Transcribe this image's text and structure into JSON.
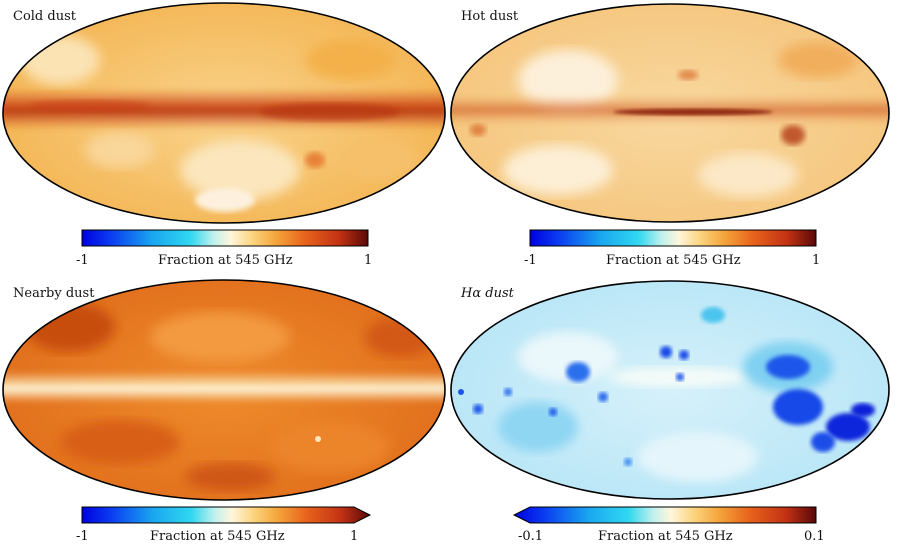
{
  "panels": [
    {
      "title": "Cold dust",
      "colorbar": {
        "label": "Fraction at 545 GHz",
        "min_label": "-1",
        "max_label": "1",
        "extend": "none"
      }
    },
    {
      "title": "Hot dust",
      "colorbar": {
        "label": "Fraction at 545 GHz",
        "min_label": "-1",
        "max_label": "1",
        "extend": "none"
      }
    },
    {
      "title": "Nearby dust",
      "colorbar": {
        "label": "Fraction at 545 GHz",
        "min_label": "-1",
        "max_label": "1",
        "extend": "max"
      }
    },
    {
      "title": "Hα dust",
      "colorbar": {
        "label": "Fraction at 545 GHz",
        "min_label": "-0.1",
        "max_label": "0.1",
        "extend": "min"
      }
    }
  ],
  "colormap": {
    "name": "planck-diverging",
    "stops": [
      "#0000e0",
      "#0a3cf0",
      "#1aa8f0",
      "#30d8f0",
      "#bff0ee",
      "#fff6dc",
      "#fbd27a",
      "#f4a43a",
      "#e8631c",
      "#c23214",
      "#5a0808"
    ]
  },
  "map_palettes": {
    "cold_dust": {
      "base": "#f7c56a",
      "light": "#fbe6bd",
      "band": "#d44a16",
      "band_core": "#b5320f"
    },
    "hot_dust": {
      "base": "#f8d392",
      "light": "#fdf0da",
      "band": "#c8441a",
      "band_core": "#8a2010"
    },
    "nearby_dust": {
      "base": "#e87a22",
      "dark": "#c74e10",
      "band": "#fbe6b6",
      "band_core": "#fff6df"
    },
    "halpha_dust": {
      "base": "#bfeaf8",
      "light": "#eaf7fb",
      "mid": "#4cc4ef",
      "dark": "#1248e8",
      "deep": "#0a20d8"
    }
  }
}
